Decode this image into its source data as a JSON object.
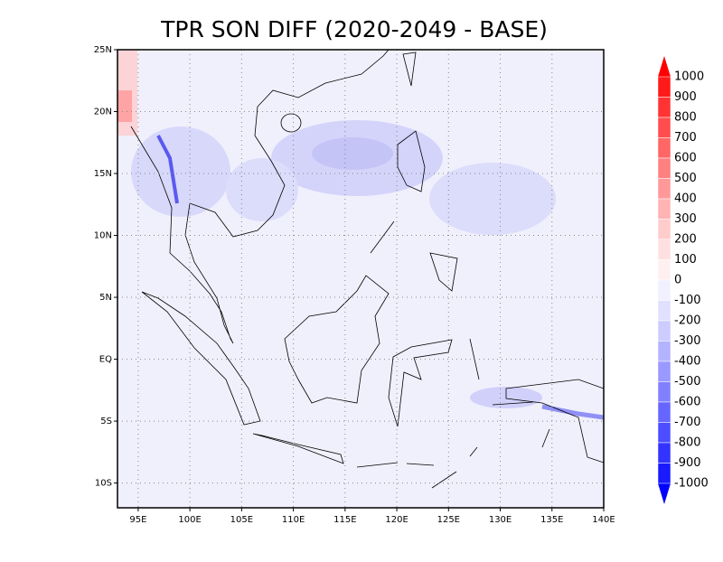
{
  "title": "TPR SON DIFF (2020-2049 - BASE)",
  "lonlim": [
    93,
    140
  ],
  "latlim": [
    -12,
    25
  ],
  "lonticks": [
    {
      "value": 95,
      "label": "95E"
    },
    {
      "value": 100,
      "label": "100E"
    },
    {
      "value": 105,
      "label": "105E"
    },
    {
      "value": 110,
      "label": "110E"
    },
    {
      "value": 115,
      "label": "115E"
    },
    {
      "value": 120,
      "label": "120E"
    },
    {
      "value": 125,
      "label": "125E"
    },
    {
      "value": 130,
      "label": "130E"
    },
    {
      "value": 135,
      "label": "135E"
    },
    {
      "value": 140,
      "label": "140E"
    }
  ],
  "latticks": [
    {
      "value": 25,
      "label": "25N"
    },
    {
      "value": 20,
      "label": "20N"
    },
    {
      "value": 15,
      "label": "15N"
    },
    {
      "value": 10,
      "label": "10N"
    },
    {
      "value": 5,
      "label": "5N"
    },
    {
      "value": 0,
      "label": "EQ"
    },
    {
      "value": -5,
      "label": "5S"
    },
    {
      "value": -10,
      "label": "10S"
    }
  ],
  "colorbar": {
    "levels": [
      1000,
      900,
      800,
      700,
      600,
      500,
      400,
      300,
      200,
      100,
      0,
      -100,
      -200,
      -300,
      -400,
      -500,
      -600,
      -700,
      -800,
      -900,
      -1000
    ],
    "colors": [
      "#ff1a1a",
      "#ff3333",
      "#ff4d4d",
      "#ff6666",
      "#ff8080",
      "#ff9999",
      "#ffb3b3",
      "#ffcccc",
      "#ffe0e0",
      "#fff0f0",
      "#f0f0ff",
      "#e0e0ff",
      "#ccccff",
      "#b3b3ff",
      "#9999ff",
      "#8080ff",
      "#6666ff",
      "#4d4dff",
      "#3333ff",
      "#1a1aff"
    ],
    "over_color": "#ff0000",
    "under_color": "#0000ff"
  }
}
